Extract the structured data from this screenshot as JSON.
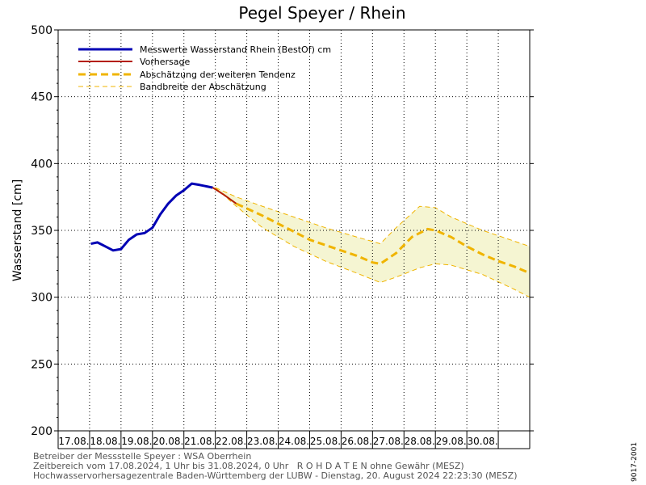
{
  "chart_data": {
    "type": "line",
    "title": "Pegel Speyer / Rhein",
    "ylabel": "Wasserstand [cm]",
    "xlabel": "",
    "ylim": [
      200,
      500
    ],
    "yticks": [
      200,
      250,
      300,
      350,
      400,
      450,
      500
    ],
    "xlim": [
      "2024-08-16",
      "2024-08-31"
    ],
    "day_labels": [
      "17.08.",
      "18.08.",
      "19.08.",
      "20.08.",
      "21.08.",
      "22.08.",
      "23.08.",
      "24.08.",
      "25.08.",
      "26.08.",
      "27.08.",
      "28.08.",
      "29.08.",
      "30.08."
    ],
    "grid": true,
    "legend_position": "top-left",
    "series": [
      {
        "name": "Messwerte Wasserstand Rhein (BestOf)  cm",
        "color": "#0000b4",
        "style": "solid-thick",
        "points": [
          [
            "2024-08-17 01:00",
            340
          ],
          [
            "2024-08-17 06:00",
            341
          ],
          [
            "2024-08-17 12:00",
            338
          ],
          [
            "2024-08-17 18:00",
            335
          ],
          [
            "2024-08-18 00:00",
            336
          ],
          [
            "2024-08-18 06:00",
            343
          ],
          [
            "2024-08-18 12:00",
            347
          ],
          [
            "2024-08-18 18:00",
            348
          ],
          [
            "2024-08-19 00:00",
            352
          ],
          [
            "2024-08-19 06:00",
            362
          ],
          [
            "2024-08-19 12:00",
            370
          ],
          [
            "2024-08-19 18:00",
            376
          ],
          [
            "2024-08-20 00:00",
            380
          ],
          [
            "2024-08-20 06:00",
            385
          ],
          [
            "2024-08-20 12:00",
            384
          ],
          [
            "2024-08-20 22:00",
            382
          ]
        ]
      },
      {
        "name": "Vorhersage",
        "color": "#b41e00",
        "style": "solid",
        "points": [
          [
            "2024-08-20 22:00",
            382
          ],
          [
            "2024-08-21 06:00",
            377
          ],
          [
            "2024-08-21 16:00",
            370
          ]
        ]
      },
      {
        "name": "Abschätzung der weiteren Tendenz",
        "color": "#f0b400",
        "style": "dashed-thick",
        "points": [
          [
            "2024-08-21 16:00",
            370
          ],
          [
            "2024-08-22 12:00",
            361
          ],
          [
            "2024-08-23 00:00",
            355
          ],
          [
            "2024-08-23 12:00",
            349
          ],
          [
            "2024-08-24 00:00",
            343
          ],
          [
            "2024-08-24 12:00",
            339
          ],
          [
            "2024-08-25 00:00",
            335
          ],
          [
            "2024-08-25 12:00",
            331
          ],
          [
            "2024-08-26 00:00",
            326
          ],
          [
            "2024-08-26 06:00",
            325
          ],
          [
            "2024-08-26 18:00",
            333
          ],
          [
            "2024-08-27 06:00",
            345
          ],
          [
            "2024-08-27 18:00",
            351
          ],
          [
            "2024-08-28 00:00",
            350
          ],
          [
            "2024-08-28 12:00",
            345
          ],
          [
            "2024-08-29 00:00",
            338
          ],
          [
            "2024-08-29 12:00",
            332
          ],
          [
            "2024-08-30 00:00",
            327
          ],
          [
            "2024-08-30 12:00",
            323
          ],
          [
            "2024-08-31 00:00",
            318
          ]
        ]
      },
      {
        "name": "Bandbreite der Abschätzung",
        "color": "#f0b400",
        "style": "dashed-thin-band",
        "upper": [
          [
            "2024-08-21 00:00",
            382
          ],
          [
            "2024-08-21 16:00",
            375
          ],
          [
            "2024-08-22 12:00",
            368
          ],
          [
            "2024-08-23 12:00",
            360
          ],
          [
            "2024-08-24 12:00",
            352
          ],
          [
            "2024-08-25 12:00",
            345
          ],
          [
            "2024-08-26 06:00",
            340
          ],
          [
            "2024-08-26 18:00",
            352
          ],
          [
            "2024-08-27 12:00",
            368
          ],
          [
            "2024-08-28 00:00",
            367
          ],
          [
            "2024-08-28 12:00",
            360
          ],
          [
            "2024-08-29 12:00",
            350
          ],
          [
            "2024-08-30 12:00",
            342
          ],
          [
            "2024-08-31 00:00",
            338
          ]
        ],
        "lower": [
          [
            "2024-08-21 00:00",
            382
          ],
          [
            "2024-08-21 16:00",
            368
          ],
          [
            "2024-08-22 12:00",
            352
          ],
          [
            "2024-08-23 12:00",
            338
          ],
          [
            "2024-08-24 12:00",
            327
          ],
          [
            "2024-08-25 12:00",
            318
          ],
          [
            "2024-08-26 06:00",
            311
          ],
          [
            "2024-08-26 18:00",
            315
          ],
          [
            "2024-08-27 12:00",
            322
          ],
          [
            "2024-08-28 00:00",
            325
          ],
          [
            "2024-08-28 12:00",
            324
          ],
          [
            "2024-08-29 12:00",
            317
          ],
          [
            "2024-08-30 12:00",
            306
          ],
          [
            "2024-08-31 00:00",
            300
          ]
        ]
      }
    ]
  },
  "footer": {
    "line1": "Betreiber der Messstelle Speyer : WSA Oberrhein",
    "line2": "Zeitbereich vom 17.08.2024, 1 Uhr bis 31.08.2024, 0 Uhr   R O H D A T E N ohne Gewähr (MESZ)",
    "line3": "Hochwasservorhersagezentrale Baden-Württemberg der LUBW - Dienstag, 20. August 2024 22:23:30 (MESZ)"
  },
  "side_code": "9017-2001",
  "colors": {
    "axis": "#000000",
    "band_fill": "#f5f5d2",
    "measured": "#0000b4",
    "forecast": "#b41e00",
    "tendency": "#f0b400"
  }
}
